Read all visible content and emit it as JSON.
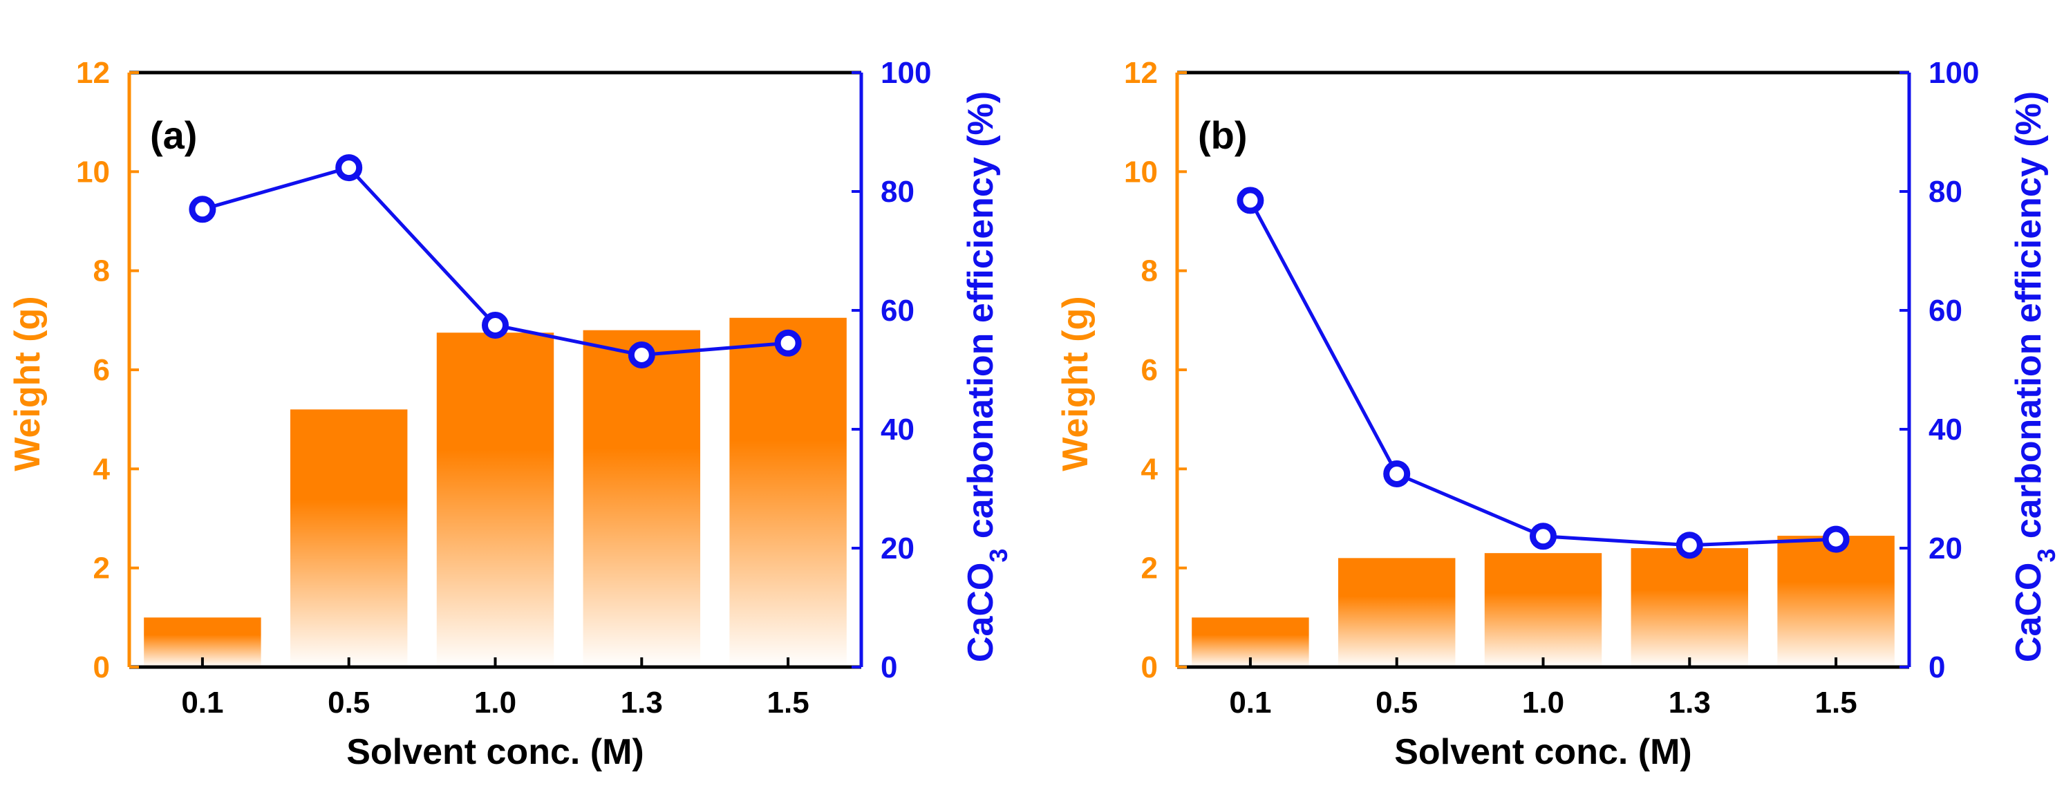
{
  "colors": {
    "bar": "#ff8000",
    "line": "#1010ee",
    "left_axis": "#ff8c00",
    "right_axis": "#1010ee",
    "frame": "#000000"
  },
  "chart_data": [
    {
      "type": "bar+line",
      "panel_label": "(a)",
      "categories": [
        "0.1",
        "0.5",
        "1.0",
        "1.3",
        "1.5"
      ],
      "xlabel": "Solvent conc. (M)",
      "ylabel_left": "Weight (g)",
      "ylabel_right_parts": [
        "CaCO",
        "3",
        " carbonation efficiency (%)"
      ],
      "ylim_left": [
        0,
        12
      ],
      "yticks_left": [
        0,
        2,
        4,
        6,
        8,
        10,
        12
      ],
      "ylim_right": [
        0,
        100
      ],
      "yticks_right": [
        0,
        20,
        40,
        60,
        80,
        100
      ],
      "bars": {
        "axis": "left",
        "values": [
          1.0,
          5.2,
          6.75,
          6.8,
          7.05
        ]
      },
      "line": {
        "axis": "right",
        "values": [
          77,
          84,
          57.5,
          52.5,
          54.5
        ]
      },
      "grid": false
    },
    {
      "type": "bar+line",
      "panel_label": "(b)",
      "categories": [
        "0.1",
        "0.5",
        "1.0",
        "1.3",
        "1.5"
      ],
      "xlabel": "Solvent conc. (M)",
      "ylabel_left": "Weight (g)",
      "ylabel_right_parts": [
        "CaCO",
        "3",
        " carbonation efficiency (%)"
      ],
      "ylim_left": [
        0,
        12
      ],
      "yticks_left": [
        0,
        2,
        4,
        6,
        8,
        10,
        12
      ],
      "ylim_right": [
        0,
        100
      ],
      "yticks_right": [
        0,
        20,
        40,
        60,
        80,
        100
      ],
      "bars": {
        "axis": "left",
        "values": [
          1.0,
          2.2,
          2.3,
          2.4,
          2.65
        ]
      },
      "line": {
        "axis": "right",
        "values": [
          78.5,
          32.5,
          22,
          20.5,
          21.5
        ]
      },
      "grid": false
    }
  ]
}
